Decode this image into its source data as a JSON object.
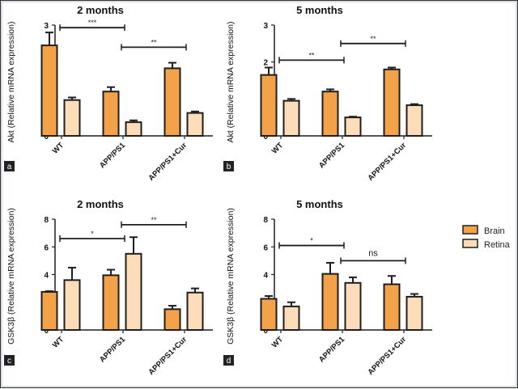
{
  "colors": {
    "brain": "#F4A24A",
    "retina": "#FDDDB9",
    "outline": "#1e1e1e",
    "label_box": "#222222"
  },
  "legend": {
    "placement": "right",
    "items": [
      {
        "name": "Brain",
        "color": "#F4A24A"
      },
      {
        "name": "Retina",
        "color": "#FDDDB9"
      }
    ]
  },
  "chart_data": [
    {
      "type": "bar",
      "panel": "a",
      "title": "2 months",
      "ylabel": "Akt (Relative mRNA expression)",
      "ylim": [
        0,
        3
      ],
      "yticks": [
        "0",
        "1",
        "2",
        "3"
      ],
      "categories": [
        "WT",
        "APP/PS1",
        "APP/PS1+Cur"
      ],
      "series": [
        {
          "name": "Brain",
          "values": [
            2.45,
            1.2,
            1.83
          ],
          "errors": [
            0.35,
            0.12,
            0.15
          ]
        },
        {
          "name": "Retina",
          "values": [
            0.97,
            0.37,
            0.62
          ],
          "errors": [
            0.07,
            0.05,
            0.04
          ]
        }
      ],
      "significance": [
        {
          "from": 0,
          "to": 1,
          "label": "***",
          "level": 2.93
        },
        {
          "from": 1,
          "to": 2,
          "label": "**",
          "level": 2.4
        }
      ]
    },
    {
      "type": "bar",
      "panel": "b",
      "title": "5 months",
      "ylabel": "Akt (Relative mRNA expression)",
      "ylim": [
        0,
        3
      ],
      "yticks": [
        "0",
        "1",
        "2",
        "3"
      ],
      "categories": [
        "WT",
        "APP/PS1",
        "APP/PS1+Cur"
      ],
      "series": [
        {
          "name": "Brain",
          "values": [
            1.65,
            1.2,
            1.8
          ],
          "errors": [
            0.2,
            0.06,
            0.05
          ]
        },
        {
          "name": "Retina",
          "values": [
            0.95,
            0.5,
            0.83
          ],
          "errors": [
            0.05,
            0.02,
            0.03
          ]
        }
      ],
      "significance": [
        {
          "from": 0,
          "to": 1,
          "label": "**",
          "level": 2.05
        },
        {
          "from": 1,
          "to": 2,
          "label": "**",
          "level": 2.5
        }
      ]
    },
    {
      "type": "bar",
      "panel": "c",
      "title": "2 months",
      "ylabel": "GSK3β (Relative mRNA expression)",
      "ylim": [
        0,
        8
      ],
      "yticks": [
        "0",
        "2",
        "4",
        "6",
        "8"
      ],
      "categories": [
        "WT",
        "APP/PS1",
        "APP/PS1+Cur"
      ],
      "series": [
        {
          "name": "Brain",
          "values": [
            2.75,
            3.95,
            1.5
          ],
          "errors": [
            0.05,
            0.4,
            0.25
          ]
        },
        {
          "name": "Retina",
          "values": [
            3.6,
            5.5,
            2.7
          ],
          "errors": [
            0.9,
            1.2,
            0.3
          ]
        }
      ],
      "significance": [
        {
          "from": 0,
          "to": 1,
          "label": "*",
          "level": 6.6
        },
        {
          "from": 1,
          "to": 2,
          "label": "**",
          "level": 7.6
        }
      ]
    },
    {
      "type": "bar",
      "panel": "d",
      "title": "5 months",
      "ylabel": "GSK3β (Relative mRNA expression)",
      "ylim": [
        0,
        8
      ],
      "yticks": [
        "0",
        "2",
        "4",
        "6",
        "8"
      ],
      "categories": [
        "WT",
        "APP/PS1",
        "APP/PS1+Cur"
      ],
      "series": [
        {
          "name": "Brain",
          "values": [
            2.25,
            4.05,
            3.3
          ],
          "errors": [
            0.2,
            0.8,
            0.6
          ]
        },
        {
          "name": "Retina",
          "values": [
            1.7,
            3.4,
            2.4
          ],
          "errors": [
            0.3,
            0.4,
            0.2
          ]
        }
      ],
      "significance": [
        {
          "from": 0,
          "to": 1,
          "label": "*",
          "level": 6.1
        },
        {
          "from": 1,
          "to": 2,
          "label": "ns",
          "level": 5.0
        }
      ]
    }
  ]
}
